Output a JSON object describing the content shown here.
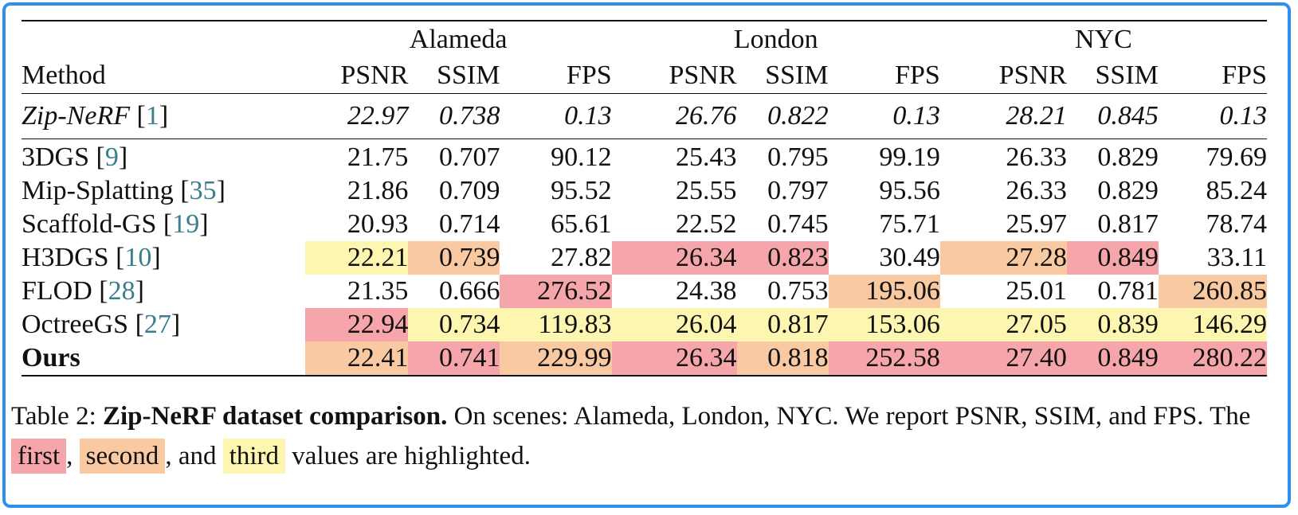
{
  "table": {
    "scenes": [
      "Alameda",
      "London",
      "NYC"
    ],
    "method_header": "Method",
    "metrics": [
      "PSNR",
      "SSIM",
      "FPS"
    ],
    "rows": [
      {
        "method": "Zip-NeRF",
        "cite": "1",
        "style": "italic",
        "values": [
          "22.97",
          "0.738",
          "0.13",
          "26.76",
          "0.822",
          "0.13",
          "28.21",
          "0.845",
          "0.13"
        ],
        "highlight": [
          "",
          "",
          "",
          "",
          "",
          "",
          "",
          "",
          ""
        ]
      },
      {
        "method": "3DGS",
        "cite": "9",
        "values": [
          "21.75",
          "0.707",
          "90.12",
          "25.43",
          "0.795",
          "99.19",
          "26.33",
          "0.829",
          "79.69"
        ],
        "highlight": [
          "",
          "",
          "",
          "",
          "",
          "",
          "",
          "",
          ""
        ]
      },
      {
        "method": "Mip-Splatting",
        "cite": "35",
        "values": [
          "21.86",
          "0.709",
          "95.52",
          "25.55",
          "0.797",
          "95.56",
          "26.33",
          "0.829",
          "85.24"
        ],
        "highlight": [
          "",
          "",
          "",
          "",
          "",
          "",
          "",
          "",
          ""
        ]
      },
      {
        "method": "Scaffold-GS",
        "cite": "19",
        "values": [
          "20.93",
          "0.714",
          "65.61",
          "22.52",
          "0.745",
          "75.71",
          "25.97",
          "0.817",
          "78.74"
        ],
        "highlight": [
          "",
          "",
          "",
          "",
          "",
          "",
          "",
          "",
          ""
        ]
      },
      {
        "method": "H3DGS",
        "cite": "10",
        "values": [
          "22.21",
          "0.739",
          "27.82",
          "26.34",
          "0.823",
          "30.49",
          "27.28",
          "0.849",
          "33.11"
        ],
        "highlight": [
          "third",
          "second",
          "",
          "first",
          "first",
          "",
          "second",
          "first",
          ""
        ]
      },
      {
        "method": "FLOD",
        "cite": "28",
        "values": [
          "21.35",
          "0.666",
          "276.52",
          "24.38",
          "0.753",
          "195.06",
          "25.01",
          "0.781",
          "260.85"
        ],
        "highlight": [
          "",
          "",
          "first",
          "",
          "",
          "second",
          "",
          "",
          "second"
        ]
      },
      {
        "method": "OctreeGS",
        "cite": "27",
        "values": [
          "22.94",
          "0.734",
          "119.83",
          "26.04",
          "0.817",
          "153.06",
          "27.05",
          "0.839",
          "146.29"
        ],
        "highlight": [
          "first",
          "third",
          "third",
          "third",
          "third",
          "third",
          "third",
          "third",
          "third"
        ]
      },
      {
        "method": "Ours",
        "cite": "",
        "style": "bold",
        "values": [
          "22.41",
          "0.741",
          "229.99",
          "26.34",
          "0.818",
          "252.58",
          "27.40",
          "0.849",
          "280.22"
        ],
        "highlight": [
          "second",
          "first",
          "second",
          "first",
          "second",
          "first",
          "first",
          "first",
          "first"
        ]
      }
    ]
  },
  "caption": {
    "label": "Table 2:",
    "title": "Zip-NeRF dataset comparison.",
    "text1": "On scenes: Alameda, London, NYC. We report PSNR, SSIM, and FPS. The",
    "first": "first",
    "sep1": ",",
    "second": "second",
    "sep2": ", and",
    "third": "third",
    "text2": "values are highlighted."
  },
  "colors": {
    "first": "#f6a5aa",
    "second": "#f9c9a1",
    "third": "#fdf6b0",
    "frame": "#2f8ff0",
    "citation": "#3a7d8c"
  }
}
